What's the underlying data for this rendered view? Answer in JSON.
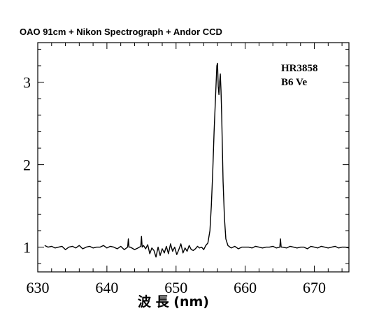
{
  "chart_data": {
    "type": "line",
    "title": "OAO 91cm + Nikon Spectrograph + Andor CCD",
    "xlabel": "波 長 (nm)",
    "ylabel": "",
    "xlim": [
      630,
      675
    ],
    "ylim": [
      0.7,
      3.48
    ],
    "xticks": [
      630,
      640,
      650,
      660,
      670
    ],
    "yticks": [
      1,
      2,
      3
    ],
    "annotations": [
      "HR3858",
      "B6 Ve"
    ],
    "grid": false,
    "series": [
      {
        "x": [
          631.0,
          631.5,
          632.0,
          632.5,
          633.0,
          633.5,
          634.0,
          634.5,
          635.0,
          635.5,
          636.0,
          636.5,
          637.0,
          637.5,
          638.0,
          638.5,
          639.0,
          639.5,
          640.0,
          640.5,
          641.0,
          641.5,
          642.0,
          642.5,
          643.0,
          643.1,
          643.2,
          643.4,
          644.0,
          644.5,
          644.9,
          645.0,
          645.1,
          645.3,
          645.6,
          645.9,
          646.2,
          646.5,
          646.8,
          647.1,
          647.4,
          647.7,
          648.0,
          648.3,
          648.6,
          648.9,
          649.2,
          649.5,
          649.8,
          650.1,
          650.4,
          650.7,
          651.0,
          651.3,
          651.6,
          651.9,
          652.2,
          652.5,
          652.8,
          653.1,
          653.4,
          653.7,
          654.0,
          654.3,
          654.6,
          654.9,
          655.1,
          655.3,
          655.5,
          655.7,
          655.9,
          656.0,
          656.1,
          656.2,
          656.3,
          656.4,
          656.5,
          656.6,
          656.7,
          656.8,
          657.0,
          657.2,
          657.5,
          657.8,
          658.0,
          658.5,
          659.0,
          659.5,
          660.0,
          660.5,
          661.0,
          661.5,
          662.0,
          662.5,
          663.0,
          663.5,
          664.0,
          664.5,
          665.0,
          665.1,
          665.2,
          665.4,
          666.0,
          666.5,
          667.0,
          667.5,
          668.0,
          668.5,
          669.0,
          669.5,
          670.0,
          670.5,
          671.0,
          671.5,
          672.0,
          672.5,
          673.0,
          673.5,
          674.0,
          674.5,
          675.0
        ],
        "y": [
          1.02,
          1.0,
          1.01,
          0.99,
          1.0,
          1.01,
          0.97,
          1.0,
          1.01,
          0.99,
          1.02,
          0.98,
          1.0,
          1.01,
          0.99,
          1.0,
          1.0,
          1.02,
          0.99,
          1.01,
          1.0,
          0.98,
          1.01,
          0.97,
          1.0,
          1.1,
          1.0,
          1.0,
          0.97,
          0.99,
          1.01,
          1.13,
          1.0,
          1.02,
          0.98,
          1.03,
          0.92,
          0.99,
          0.96,
          0.88,
          1.0,
          0.9,
          0.98,
          0.93,
          1.01,
          0.92,
          1.04,
          0.95,
          1.0,
          0.91,
          0.97,
          1.04,
          0.93,
          0.99,
          0.95,
          1.02,
          0.97,
          0.96,
          0.98,
          1.01,
          0.99,
          1.0,
          0.97,
          1.02,
          1.05,
          1.2,
          1.5,
          1.9,
          2.4,
          2.8,
          3.2,
          3.23,
          2.95,
          2.85,
          3.0,
          3.1,
          2.9,
          2.6,
          2.2,
          1.8,
          1.35,
          1.1,
          1.02,
          1.0,
          0.99,
          1.01,
          0.98,
          1.0,
          1.0,
          1.0,
          0.99,
          1.01,
          1.0,
          0.99,
          1.0,
          1.0,
          1.01,
          0.99,
          1.0,
          1.1,
          1.0,
          1.0,
          0.99,
          1.01,
          1.0,
          0.99,
          1.0,
          1.0,
          0.98,
          1.01,
          1.0,
          0.99,
          1.01,
          1.0,
          0.99,
          1.0,
          1.01,
          0.99,
          1.0,
          1.0,
          0.99
        ]
      }
    ]
  }
}
